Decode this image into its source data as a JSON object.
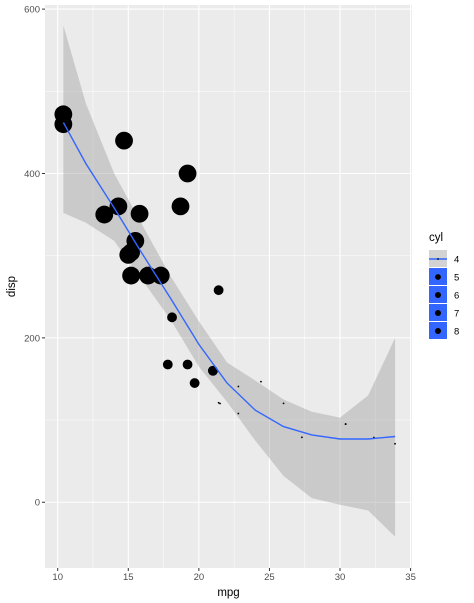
{
  "chart_data": {
    "type": "scatter",
    "xlabel": "mpg",
    "ylabel": "disp",
    "xlim": [
      9.1,
      35.1
    ],
    "ylim": [
      -80,
      605
    ],
    "x_ticks": [
      10,
      15,
      20,
      25,
      30,
      35
    ],
    "y_ticks": [
      0,
      200,
      400,
      600
    ],
    "x_tick_labels": [
      "10",
      "15",
      "20",
      "25",
      "30",
      "35"
    ],
    "y_tick_labels": [
      "0",
      "200",
      "400",
      "600"
    ],
    "grid": true,
    "legend": {
      "title": "cyl",
      "position": "right",
      "labels": [
        "4",
        "5",
        "6",
        "7",
        "8"
      ],
      "values": [
        4,
        5,
        6,
        7,
        8
      ]
    },
    "colors": {
      "panel": "#ebebeb",
      "grid_major": "#ffffff",
      "point": "#000000",
      "smooth_line": "#3366ff",
      "ribbon": "#999999",
      "legend_key": "#3366ff"
    },
    "points": [
      {
        "x": 21.0,
        "y": 160,
        "cyl": 6
      },
      {
        "x": 21.0,
        "y": 160,
        "cyl": 6
      },
      {
        "x": 22.8,
        "y": 108,
        "cyl": 4
      },
      {
        "x": 21.4,
        "y": 258,
        "cyl": 6
      },
      {
        "x": 18.7,
        "y": 360,
        "cyl": 8
      },
      {
        "x": 18.1,
        "y": 225,
        "cyl": 6
      },
      {
        "x": 14.3,
        "y": 360,
        "cyl": 8
      },
      {
        "x": 24.4,
        "y": 146.7,
        "cyl": 4
      },
      {
        "x": 22.8,
        "y": 140.8,
        "cyl": 4
      },
      {
        "x": 19.2,
        "y": 167.6,
        "cyl": 6
      },
      {
        "x": 17.8,
        "y": 167.6,
        "cyl": 6
      },
      {
        "x": 16.4,
        "y": 275.8,
        "cyl": 8
      },
      {
        "x": 17.3,
        "y": 275.8,
        "cyl": 8
      },
      {
        "x": 15.2,
        "y": 275.8,
        "cyl": 8
      },
      {
        "x": 10.4,
        "y": 472,
        "cyl": 8
      },
      {
        "x": 10.4,
        "y": 460,
        "cyl": 8
      },
      {
        "x": 14.7,
        "y": 440,
        "cyl": 8
      },
      {
        "x": 32.4,
        "y": 78.7,
        "cyl": 4
      },
      {
        "x": 30.4,
        "y": 95.1,
        "cyl": 4
      },
      {
        "x": 33.9,
        "y": 71.1,
        "cyl": 4
      },
      {
        "x": 21.5,
        "y": 120.1,
        "cyl": 4
      },
      {
        "x": 15.5,
        "y": 318,
        "cyl": 8
      },
      {
        "x": 15.2,
        "y": 304,
        "cyl": 8
      },
      {
        "x": 13.3,
        "y": 350,
        "cyl": 8
      },
      {
        "x": 19.2,
        "y": 400,
        "cyl": 8
      },
      {
        "x": 27.3,
        "y": 79,
        "cyl": 4
      },
      {
        "x": 26.0,
        "y": 120.3,
        "cyl": 4
      },
      {
        "x": 30.4,
        "y": 95.1,
        "cyl": 4
      },
      {
        "x": 15.8,
        "y": 351,
        "cyl": 8
      },
      {
        "x": 19.7,
        "y": 145,
        "cyl": 6
      },
      {
        "x": 15.0,
        "y": 301,
        "cyl": 8
      },
      {
        "x": 21.4,
        "y": 121,
        "cyl": 4
      }
    ],
    "smooth": {
      "x": [
        10.4,
        12,
        14,
        16,
        18,
        20,
        22,
        24,
        26,
        28,
        30,
        32,
        33.9
      ],
      "y": [
        462,
        412,
        358,
        302,
        248,
        192,
        145,
        112,
        92,
        82,
        77,
        77,
        80
      ],
      "lower": [
        352,
        340,
        318,
        270,
        222,
        165,
        122,
        75,
        32,
        5,
        -3,
        -10,
        -42
      ],
      "upper": [
        580,
        485,
        400,
        337,
        275,
        220,
        170,
        148,
        125,
        110,
        103,
        130,
        200
      ]
    }
  }
}
